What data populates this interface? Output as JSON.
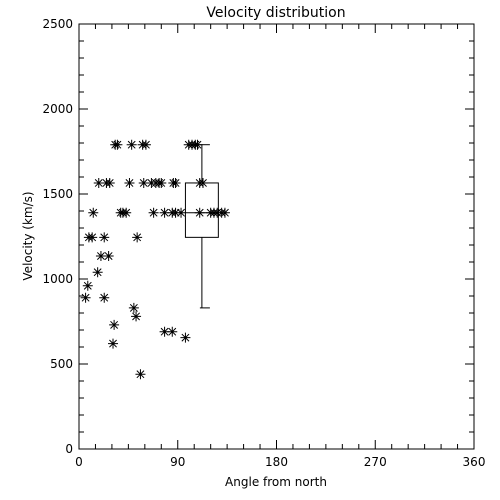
{
  "chart_data": {
    "type": "scatter",
    "title": "Velocity distribution",
    "xlabel": "Angle from north",
    "ylabel": "Velocity (km/s)",
    "xlim": [
      0,
      360
    ],
    "ylim": [
      0,
      2500
    ],
    "xticks": [
      0,
      90,
      180,
      270,
      360
    ],
    "yticks": [
      0,
      500,
      1000,
      1500,
      2000,
      2500
    ],
    "grid": false,
    "marker": "asterisk",
    "points": [
      [
        33,
        1790
      ],
      [
        35,
        1790
      ],
      [
        48,
        1790
      ],
      [
        58,
        1790
      ],
      [
        61,
        1790
      ],
      [
        100,
        1790
      ],
      [
        103,
        1790
      ],
      [
        106,
        1790
      ],
      [
        108,
        1790
      ],
      [
        18,
        1565
      ],
      [
        25,
        1565
      ],
      [
        28,
        1565
      ],
      [
        46,
        1565
      ],
      [
        59,
        1565
      ],
      [
        66,
        1565
      ],
      [
        70,
        1565
      ],
      [
        73,
        1565
      ],
      [
        75,
        1565
      ],
      [
        86,
        1565
      ],
      [
        88,
        1565
      ],
      [
        110,
        1565
      ],
      [
        113,
        1565
      ],
      [
        13,
        1390
      ],
      [
        38,
        1390
      ],
      [
        40,
        1390
      ],
      [
        43,
        1390
      ],
      [
        68,
        1390
      ],
      [
        78,
        1390
      ],
      [
        85,
        1390
      ],
      [
        88,
        1390
      ],
      [
        93,
        1390
      ],
      [
        110,
        1390
      ],
      [
        120,
        1390
      ],
      [
        123,
        1390
      ],
      [
        126,
        1390
      ],
      [
        130,
        1390
      ],
      [
        133,
        1390
      ],
      [
        9,
        1245
      ],
      [
        12,
        1245
      ],
      [
        23,
        1245
      ],
      [
        53,
        1245
      ],
      [
        20,
        1135
      ],
      [
        27,
        1135
      ],
      [
        17,
        1040
      ],
      [
        8,
        960
      ],
      [
        6,
        890
      ],
      [
        23,
        890
      ],
      [
        50,
        830
      ],
      [
        52,
        780
      ],
      [
        32,
        730
      ],
      [
        78,
        690
      ],
      [
        85,
        690
      ],
      [
        97,
        655
      ],
      [
        31,
        620
      ],
      [
        56,
        440
      ]
    ],
    "boxplot": {
      "x": 112,
      "width": 30,
      "min": 830,
      "q1": 1245,
      "median": 1390,
      "q3": 1565,
      "max": 1790
    }
  }
}
